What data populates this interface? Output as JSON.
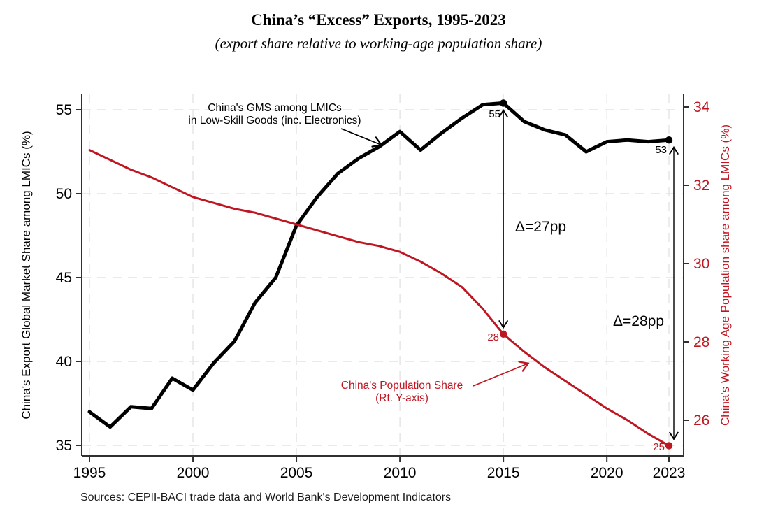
{
  "header": {
    "title": "China’s “Excess” Exports, 1995-2023",
    "subtitle": "(export share relative to working-age population share)"
  },
  "footer": {
    "sources": "Sources: CEPII-BACI trade data and World Bank's Development Indicators"
  },
  "colors": {
    "black_series": "#000000",
    "red_series": "#bf1722",
    "grid": "#e4e4e4",
    "axis": "#303030"
  },
  "chart_data": {
    "type": "line",
    "x": [
      1995,
      1996,
      1997,
      1998,
      1999,
      2000,
      2001,
      2002,
      2003,
      2004,
      2005,
      2006,
      2007,
      2008,
      2009,
      2010,
      2011,
      2012,
      2013,
      2014,
      2015,
      2016,
      2017,
      2018,
      2019,
      2020,
      2021,
      2022,
      2023
    ],
    "series": [
      {
        "name": "China's GMS among LMICs in Low-Skill Goods (inc. Electronics)",
        "axis": "left",
        "color": "#000000",
        "values": [
          37.0,
          36.1,
          37.3,
          37.2,
          39.0,
          38.3,
          39.9,
          41.2,
          43.5,
          45.0,
          48.1,
          49.8,
          51.2,
          52.1,
          52.8,
          53.7,
          52.6,
          53.6,
          54.5,
          55.3,
          55.4,
          54.3,
          53.8,
          53.5,
          52.5,
          53.1,
          53.2,
          53.1,
          53.2
        ]
      },
      {
        "name": "China's Population Share (Rt. Y-axis)",
        "axis": "right",
        "color": "#bf1722",
        "values": [
          32.9,
          32.65,
          32.4,
          32.2,
          31.95,
          31.7,
          31.55,
          31.4,
          31.3,
          31.15,
          31.0,
          30.85,
          30.7,
          30.55,
          30.45,
          30.3,
          30.05,
          29.75,
          29.4,
          28.85,
          28.2,
          27.75,
          27.35,
          27.0,
          26.65,
          26.3,
          26.0,
          25.65,
          25.35
        ]
      }
    ],
    "left_axis": {
      "label": "China's Export Global Market Share among LMICs (%)",
      "ticks": [
        35,
        40,
        45,
        50,
        55
      ]
    },
    "right_axis": {
      "label": "China's Working Age Population share among LMICs (%)",
      "ticks": [
        26,
        28,
        30,
        32,
        34
      ]
    },
    "x_axis": {
      "ticks": [
        1995,
        2000,
        2005,
        2010,
        2015,
        2020,
        2023
      ]
    },
    "grid": "dashed",
    "legend_position": "annotated-in-plot",
    "annotations": {
      "series_labels": [
        {
          "lines": [
            "China's GMS among LMICs",
            "in Low-Skill Goods (inc. Electronics)"
          ],
          "color": "#000000"
        },
        {
          "lines": [
            "China's Population Share",
            "(Rt. Y-axis)"
          ],
          "color": "#bf1722"
        }
      ],
      "deltas": [
        {
          "text": "Δ=27pp",
          "year": 2015
        },
        {
          "text": "Δ=28pp",
          "year": 2023
        }
      ],
      "point_labels": [
        {
          "series": 0,
          "year": 2015,
          "text": "55"
        },
        {
          "series": 0,
          "year": 2023,
          "text": "53"
        },
        {
          "series": 1,
          "year": 2015,
          "text": "28"
        },
        {
          "series": 1,
          "year": 2023,
          "text": "25"
        }
      ],
      "marker_years": [
        2015,
        2023
      ]
    }
  }
}
